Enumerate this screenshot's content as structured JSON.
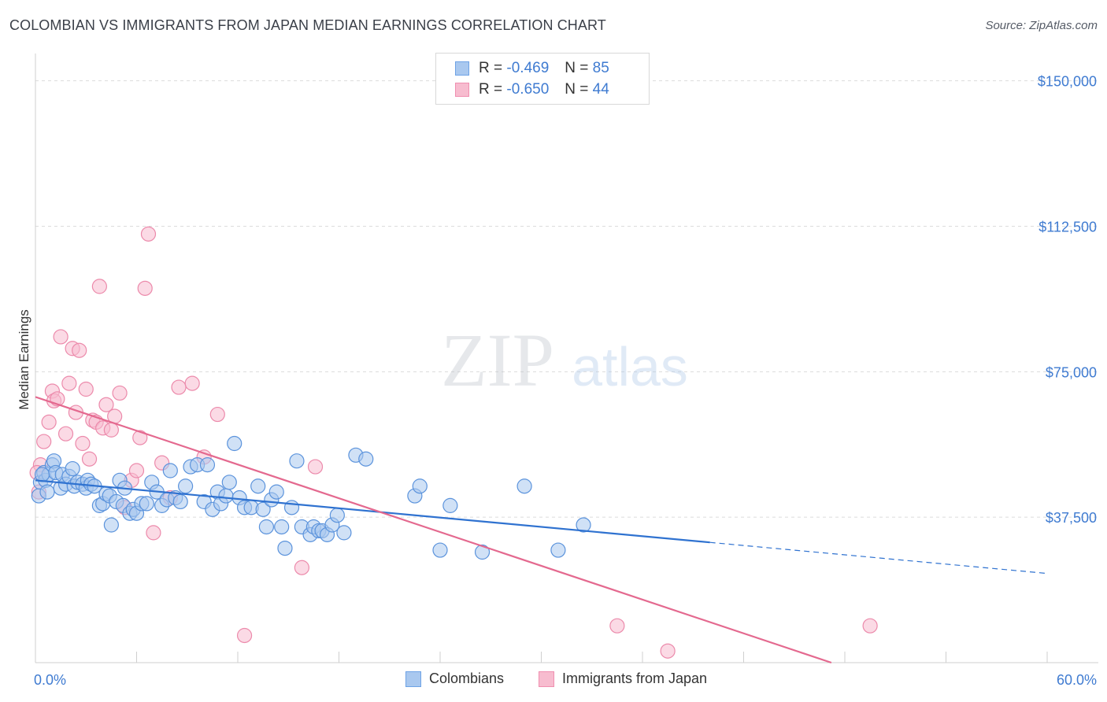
{
  "header": {
    "title": "COLOMBIAN VS IMMIGRANTS FROM JAPAN MEDIAN EARNINGS CORRELATION CHART",
    "source": "Source: ZipAtlas.com"
  },
  "watermark": {
    "zip": "ZIP",
    "atlas": "atlas"
  },
  "legend": {
    "rows": [
      {
        "r_label": "R =",
        "r_value": "-0.469",
        "n_label": "N =",
        "n_value": "85",
        "color": "#6ea3e6"
      },
      {
        "r_label": "R =",
        "r_value": "-0.650",
        "n_label": "N =",
        "n_value": "44",
        "color": "#f08fb0"
      }
    ]
  },
  "bottom_legend": {
    "colombians": "Colombians",
    "japan": "Immigrants from Japan"
  },
  "colors": {
    "blue_fill": "#a9c8ef",
    "blue_stroke": "#5b93dc",
    "blue_line": "#2f72d0",
    "pink_fill": "#f7bccf",
    "pink_stroke": "#ec8aab",
    "pink_line": "#e4698f",
    "tick_text": "#3f7bd1"
  },
  "chart_data": {
    "type": "scatter",
    "title": "COLOMBIAN VS IMMIGRANTS FROM JAPAN MEDIAN EARNINGS CORRELATION CHART",
    "xlabel": "",
    "ylabel": "Median Earnings",
    "xlim": [
      0,
      60
    ],
    "ylim": [
      0,
      155000
    ],
    "x_tick_labels": [
      "0.0%",
      "60.0%"
    ],
    "y_ticks": [
      37500,
      75000,
      112500,
      150000
    ],
    "y_tick_labels": [
      "$37,500",
      "$75,000",
      "$112,500",
      "$150,000"
    ],
    "grid": "horizontal dashed",
    "legend_position": "top-center",
    "series": [
      {
        "name": "Colombians",
        "r": -0.469,
        "n": 85,
        "points": [
          [
            0.3,
            46500
          ],
          [
            0.5,
            49000
          ],
          [
            0.6,
            47000
          ],
          [
            0.8,
            48500
          ],
          [
            1.0,
            51000
          ],
          [
            1.1,
            52000
          ],
          [
            1.2,
            49000
          ],
          [
            1.5,
            45000
          ],
          [
            1.6,
            48500
          ],
          [
            1.8,
            46000
          ],
          [
            2.0,
            48000
          ],
          [
            2.2,
            50000
          ],
          [
            2.3,
            45500
          ],
          [
            2.5,
            46500
          ],
          [
            2.8,
            46000
          ],
          [
            3.0,
            45000
          ],
          [
            3.1,
            47000
          ],
          [
            3.3,
            46000
          ],
          [
            3.5,
            45500
          ],
          [
            3.8,
            40500
          ],
          [
            4.0,
            41000
          ],
          [
            4.2,
            43500
          ],
          [
            4.4,
            43000
          ],
          [
            4.5,
            35500
          ],
          [
            4.8,
            41500
          ],
          [
            5.0,
            47000
          ],
          [
            5.2,
            40500
          ],
          [
            5.3,
            45000
          ],
          [
            5.6,
            38500
          ],
          [
            5.8,
            39500
          ],
          [
            6.0,
            38500
          ],
          [
            6.3,
            41000
          ],
          [
            6.6,
            41000
          ],
          [
            6.9,
            46500
          ],
          [
            7.2,
            44000
          ],
          [
            7.5,
            40500
          ],
          [
            7.8,
            42000
          ],
          [
            8.0,
            49500
          ],
          [
            8.3,
            42500
          ],
          [
            8.6,
            41500
          ],
          [
            8.9,
            45500
          ],
          [
            9.2,
            50500
          ],
          [
            9.6,
            51000
          ],
          [
            10.0,
            41500
          ],
          [
            10.2,
            51000
          ],
          [
            10.5,
            39500
          ],
          [
            10.8,
            44000
          ],
          [
            11.0,
            41000
          ],
          [
            11.3,
            43000
          ],
          [
            11.5,
            46500
          ],
          [
            11.8,
            56500
          ],
          [
            12.1,
            42500
          ],
          [
            12.4,
            40000
          ],
          [
            12.8,
            40000
          ],
          [
            13.2,
            45500
          ],
          [
            13.5,
            39500
          ],
          [
            13.7,
            35000
          ],
          [
            14.0,
            42000
          ],
          [
            14.3,
            44000
          ],
          [
            14.6,
            35000
          ],
          [
            14.8,
            29500
          ],
          [
            15.2,
            40000
          ],
          [
            15.5,
            52000
          ],
          [
            15.8,
            35000
          ],
          [
            16.3,
            33000
          ],
          [
            16.5,
            35000
          ],
          [
            16.8,
            34000
          ],
          [
            17.0,
            34000
          ],
          [
            17.3,
            33000
          ],
          [
            17.6,
            35500
          ],
          [
            17.9,
            38000
          ],
          [
            18.3,
            33500
          ],
          [
            19.0,
            53500
          ],
          [
            19.6,
            52500
          ],
          [
            22.5,
            43000
          ],
          [
            22.8,
            45500
          ],
          [
            24.0,
            29000
          ],
          [
            24.6,
            40500
          ],
          [
            26.5,
            28500
          ],
          [
            29.0,
            45500
          ],
          [
            31.0,
            29000
          ],
          [
            32.5,
            35500
          ],
          [
            0.2,
            43000
          ],
          [
            0.4,
            48500
          ],
          [
            0.7,
            44000
          ]
        ]
      },
      {
        "name": "Immigrants from Japan",
        "r": -0.65,
        "n": 44,
        "points": [
          [
            0.2,
            44000
          ],
          [
            0.3,
            51000
          ],
          [
            0.5,
            57000
          ],
          [
            0.8,
            62000
          ],
          [
            1.0,
            70000
          ],
          [
            1.1,
            67500
          ],
          [
            1.3,
            68000
          ],
          [
            1.5,
            84000
          ],
          [
            1.8,
            59000
          ],
          [
            2.0,
            72000
          ],
          [
            2.2,
            81000
          ],
          [
            2.4,
            64500
          ],
          [
            2.6,
            80500
          ],
          [
            2.8,
            56500
          ],
          [
            3.0,
            70500
          ],
          [
            3.2,
            52500
          ],
          [
            3.4,
            62500
          ],
          [
            3.6,
            62000
          ],
          [
            3.8,
            97000
          ],
          [
            4.0,
            60500
          ],
          [
            4.2,
            66500
          ],
          [
            4.5,
            60000
          ],
          [
            4.7,
            63500
          ],
          [
            5.0,
            69500
          ],
          [
            5.3,
            40000
          ],
          [
            5.7,
            47000
          ],
          [
            6.0,
            49500
          ],
          [
            6.2,
            58000
          ],
          [
            6.5,
            96500
          ],
          [
            6.7,
            110500
          ],
          [
            7.0,
            33500
          ],
          [
            7.5,
            51500
          ],
          [
            8.0,
            42500
          ],
          [
            8.5,
            71000
          ],
          [
            9.3,
            72000
          ],
          [
            10.0,
            53000
          ],
          [
            10.8,
            64000
          ],
          [
            12.4,
            7000
          ],
          [
            15.8,
            24500
          ],
          [
            16.6,
            50500
          ],
          [
            34.5,
            9500
          ],
          [
            37.5,
            3000
          ],
          [
            49.5,
            9500
          ],
          [
            0.1,
            49000
          ]
        ]
      }
    ],
    "trend_lines": [
      {
        "series": "Colombians",
        "x": [
          0,
          40,
          60
        ],
        "y": [
          47000,
          31000,
          23000
        ],
        "dashed_from_x": 40
      },
      {
        "series": "Immigrants from Japan",
        "x": [
          0,
          47.2
        ],
        "y": [
          68500,
          0
        ]
      }
    ]
  }
}
